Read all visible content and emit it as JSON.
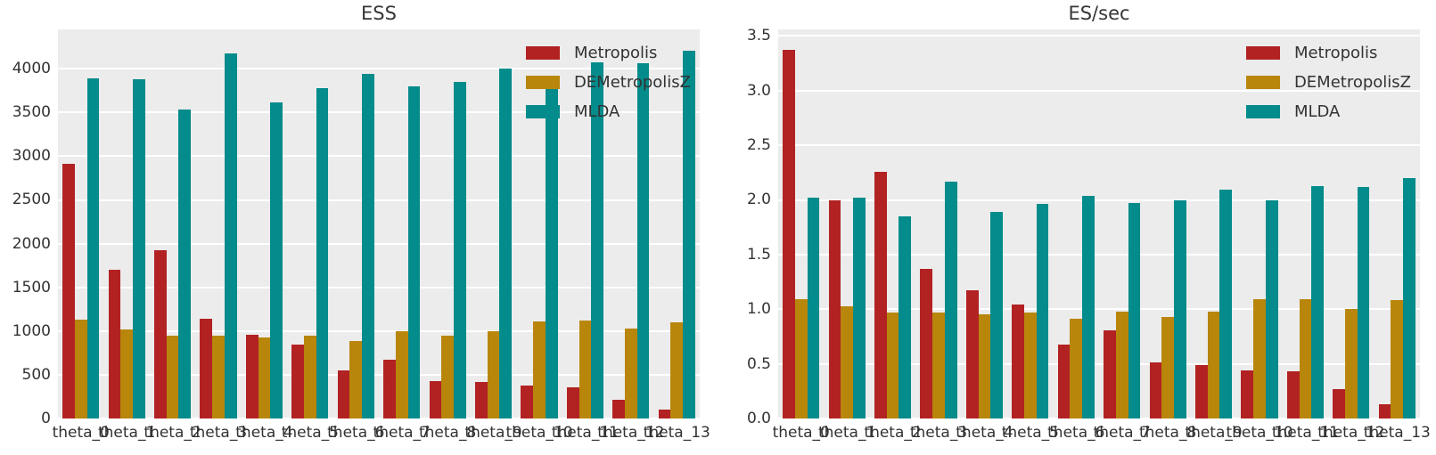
{
  "figure": {
    "background": "#ffffff",
    "plot_background": "#ececec",
    "grid_color": "#ffffff",
    "text_color": "#333333"
  },
  "chart_data": [
    {
      "type": "bar",
      "title": "ESS",
      "grid": true,
      "legend_position": "upper right",
      "categories": [
        "theta_0",
        "theta_1",
        "theta_2",
        "theta_3",
        "theta_4",
        "theta_5",
        "theta_6",
        "theta_7",
        "theta_8",
        "theta_9",
        "theta_10",
        "theta_11",
        "theta_12",
        "theta_13"
      ],
      "series": [
        {
          "name": "Metropolis",
          "color": "#b22222",
          "values": [
            2910,
            1700,
            1920,
            1140,
            960,
            850,
            545,
            670,
            430,
            415,
            375,
            355,
            215,
            100
          ]
        },
        {
          "name": "DEMetropolisZ",
          "color": "#b8860b",
          "values": [
            1130,
            1020,
            945,
            945,
            925,
            950,
            885,
            1000,
            945,
            995,
            1110,
            1120,
            1025,
            1100
          ]
        },
        {
          "name": "MLDA",
          "color": "#048b8b",
          "values": [
            3890,
            3880,
            3530,
            4180,
            3620,
            3780,
            3940,
            3800,
            3845,
            4000,
            3850,
            4075,
            4065,
            4210
          ]
        }
      ],
      "xlabel": "",
      "ylabel": "",
      "ylim": [
        0,
        4450
      ],
      "yticks": [
        0,
        500,
        1000,
        1500,
        2000,
        2500,
        3000,
        3500,
        4000
      ],
      "ytick_labels": [
        "0",
        "500",
        "1000",
        "1500",
        "2000",
        "2500",
        "3000",
        "3500",
        "4000"
      ]
    },
    {
      "type": "bar",
      "title": "ES/sec",
      "grid": true,
      "legend_position": "upper right",
      "categories": [
        "theta_0",
        "theta_1",
        "theta_2",
        "theta_3",
        "theta_4",
        "theta_5",
        "theta_6",
        "theta_7",
        "theta_8",
        "theta_9",
        "theta_10",
        "theta_11",
        "theta_12",
        "theta_13"
      ],
      "series": [
        {
          "name": "Metropolis",
          "color": "#b22222",
          "values": [
            3.37,
            2.0,
            2.26,
            1.37,
            1.17,
            1.04,
            0.68,
            0.81,
            0.51,
            0.49,
            0.44,
            0.43,
            0.27,
            0.13
          ]
        },
        {
          "name": "DEMetropolisZ",
          "color": "#b8860b",
          "values": [
            1.09,
            1.03,
            0.97,
            0.97,
            0.95,
            0.97,
            0.91,
            0.98,
            0.93,
            0.98,
            1.09,
            1.09,
            1.0,
            1.08
          ]
        },
        {
          "name": "MLDA",
          "color": "#048b8b",
          "values": [
            2.02,
            2.02,
            1.85,
            2.17,
            1.89,
            1.96,
            2.04,
            1.97,
            2.0,
            2.09,
            2.0,
            2.13,
            2.12,
            2.2
          ]
        }
      ],
      "xlabel": "",
      "ylabel": "",
      "ylim": [
        0,
        3.56
      ],
      "yticks": [
        0.0,
        0.5,
        1.0,
        1.5,
        2.0,
        2.5,
        3.0,
        3.5
      ],
      "ytick_labels": [
        "0.0",
        "0.5",
        "1.0",
        "1.5",
        "2.0",
        "2.5",
        "3.0",
        "3.5"
      ]
    }
  ]
}
